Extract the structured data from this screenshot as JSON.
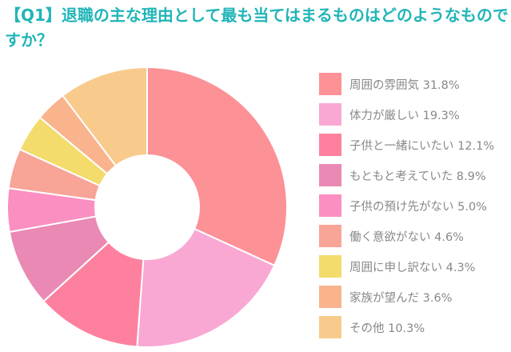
{
  "chart_data": {
    "type": "pie",
    "style": "donut",
    "title": "【Q1】退職の主な理由として最も当てはまるものはどのようなものですか？",
    "legend_position": "right",
    "unit": "%",
    "slices": [
      {
        "label": "周囲の雰囲気",
        "value": 31.8,
        "value_label": "31.8%",
        "color": "#fc9196"
      },
      {
        "label": "体力が厳しい",
        "value": 19.3,
        "value_label": "19.3%",
        "color": "#f9a8d4"
      },
      {
        "label": "子供と一緒にいたい",
        "value": 12.1,
        "value_label": "12.1%",
        "color": "#fd819f"
      },
      {
        "label": "もともと考えていた",
        "value": 8.9,
        "value_label": "8.9%",
        "color": "#e989b4"
      },
      {
        "label": "子供の預け先がない",
        "value": 5.0,
        "value_label": "5.0%",
        "color": "#fb8fc1"
      },
      {
        "label": "働く意欲がない",
        "value": 4.6,
        "value_label": "4.6%",
        "color": "#f8a497"
      },
      {
        "label": "周囲に申し訳ない",
        "value": 4.3,
        "value_label": "4.3%",
        "color": "#f3dc6b"
      },
      {
        "label": "家族が望んだ",
        "value": 3.6,
        "value_label": "3.6%",
        "color": "#f9b48e"
      },
      {
        "label": "その他",
        "value": 10.3,
        "value_label": "10.3%",
        "color": "#f8cb8c"
      }
    ]
  }
}
